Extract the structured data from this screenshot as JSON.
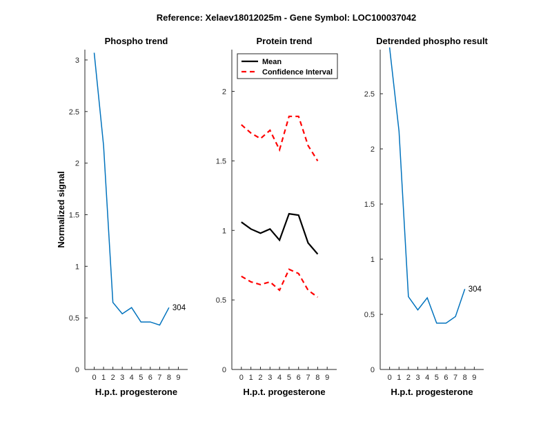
{
  "suptitle": "Reference:  Xelaev18012025m - Gene Symbol:  LOC100037042",
  "colors": {
    "series": "#0072BD",
    "mean": "#000000",
    "ci": "#FF0000"
  },
  "chart_data": [
    {
      "id": "phospho",
      "type": "line",
      "title": "Phospho trend",
      "xlabel": "H.p.t. progesterone",
      "ylabel": "Normalized signal",
      "xlim": [
        -1,
        10
      ],
      "ylim": [
        0,
        3.1
      ],
      "xticks": [
        0,
        1,
        2,
        3,
        4,
        5,
        6,
        7,
        8,
        9
      ],
      "yticks": [
        0,
        0.5,
        1,
        1.5,
        2,
        2.5,
        3
      ],
      "ytick_labels": [
        "0",
        "0.5",
        "1",
        "1.5",
        "2",
        "2.5",
        "3"
      ],
      "series": [
        {
          "name": "304",
          "x": [
            0,
            1,
            2,
            3,
            4,
            5,
            6,
            7,
            8,
            9
          ],
          "values": [
            3.07,
            2.17,
            0.65,
            0.54,
            0.6,
            0.46,
            0.46,
            0.43,
            0.6,
            null
          ]
        }
      ],
      "point_label": "304"
    },
    {
      "id": "protein",
      "type": "line",
      "title": "Protein trend",
      "xlabel": "H.p.t. progesterone",
      "ylabel": "",
      "xlim": [
        -1,
        10
      ],
      "ylim": [
        0,
        2.3
      ],
      "xticks": [
        0,
        1,
        2,
        3,
        4,
        5,
        6,
        7,
        8,
        9
      ],
      "yticks": [
        0,
        0.5,
        1,
        1.5,
        2
      ],
      "ytick_labels": [
        "0",
        "0.5",
        "1",
        "1.5",
        "2"
      ],
      "legend": [
        "Mean",
        "Confidence Interval"
      ],
      "series": [
        {
          "name": "Mean",
          "style": "solid",
          "x": [
            0,
            1,
            2,
            3,
            4,
            5,
            6,
            7,
            8,
            9
          ],
          "values": [
            1.06,
            1.01,
            0.98,
            1.01,
            0.93,
            1.12,
            1.11,
            0.91,
            0.83,
            null
          ]
        },
        {
          "name": "Confidence Interval",
          "style": "dashed",
          "x": [
            0,
            1,
            2,
            3,
            4,
            5,
            6,
            7,
            8,
            9
          ],
          "values": [
            1.76,
            1.7,
            1.66,
            1.72,
            1.58,
            1.82,
            1.82,
            1.61,
            1.5,
            null
          ]
        },
        {
          "name": "Confidence Interval (lower)",
          "style": "dashed",
          "x": [
            0,
            1,
            2,
            3,
            4,
            5,
            6,
            7,
            8,
            9
          ],
          "values": [
            0.67,
            0.63,
            0.61,
            0.63,
            0.57,
            0.72,
            0.69,
            0.57,
            0.52,
            null
          ]
        }
      ]
    },
    {
      "id": "detrended",
      "type": "line",
      "title": "Detrended phospho result",
      "xlabel": "H.p.t. progesterone",
      "ylabel": "",
      "xlim": [
        -1,
        10
      ],
      "ylim": [
        0,
        2.9
      ],
      "xticks": [
        0,
        1,
        2,
        3,
        4,
        5,
        6,
        7,
        8,
        9
      ],
      "yticks": [
        0,
        0.5,
        1,
        1.5,
        2,
        2.5
      ],
      "ytick_labels": [
        "0",
        "0.5",
        "1",
        "1.5",
        "2",
        "2.5"
      ],
      "series": [
        {
          "name": "304",
          "x": [
            0,
            1,
            2,
            3,
            4,
            5,
            6,
            7,
            8,
            9
          ],
          "values": [
            2.92,
            2.16,
            0.66,
            0.54,
            0.65,
            0.42,
            0.42,
            0.48,
            0.73,
            null
          ]
        }
      ],
      "point_label": "304"
    }
  ]
}
